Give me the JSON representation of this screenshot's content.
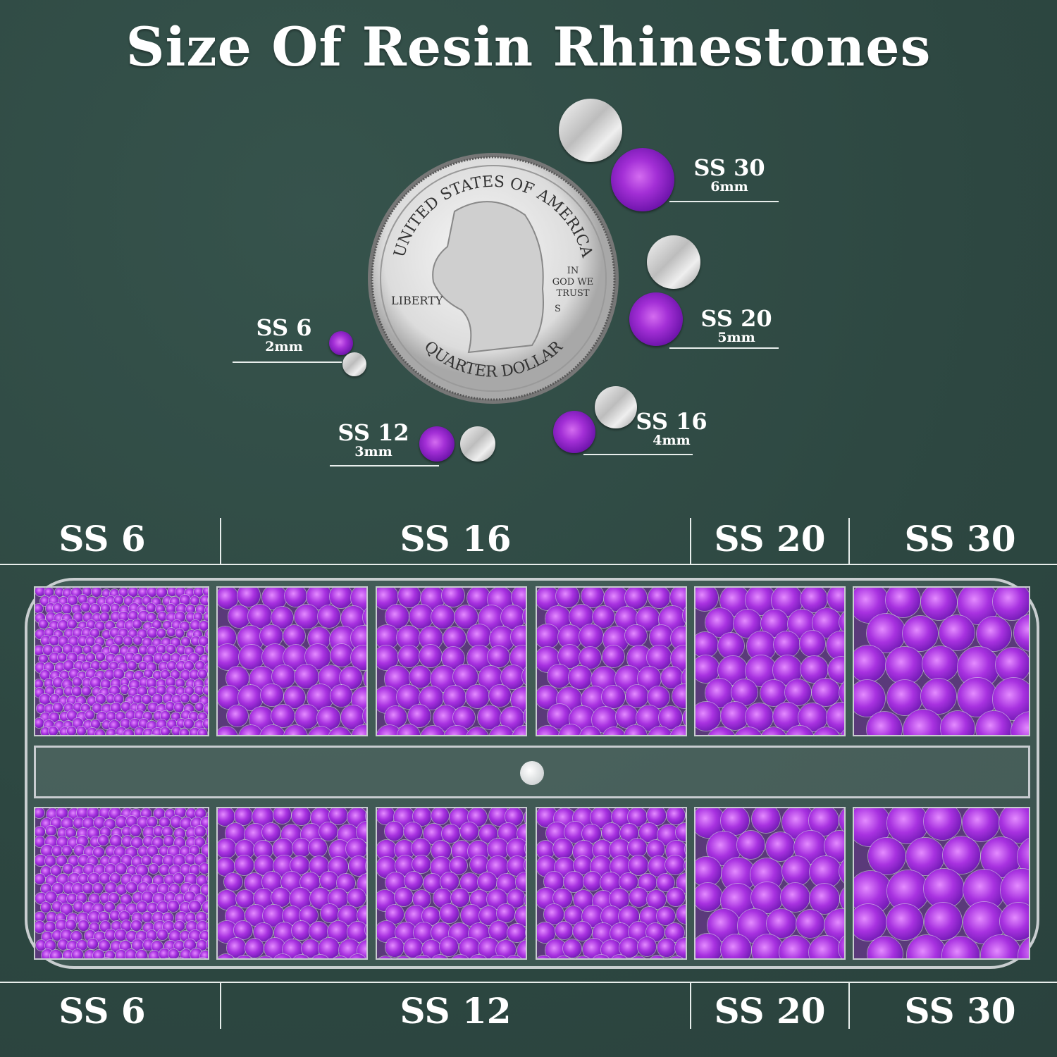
{
  "title": "Size Of Resin Rhinestones",
  "coin": {
    "top_text": "UNITED STATES OF AMERICA",
    "liberty": "LIBERTY",
    "motto": [
      "IN",
      "GOD WE",
      "TRUST"
    ],
    "mint": "S",
    "bottom_text": "QUARTER DOLLAR"
  },
  "size_callouts": [
    {
      "size": "SS 30",
      "mm": "6mm"
    },
    {
      "size": "SS 20",
      "mm": "5mm"
    },
    {
      "size": "SS 16",
      "mm": "4mm"
    },
    {
      "size": "SS 12",
      "mm": "3mm"
    },
    {
      "size": "SS 6",
      "mm": "2mm"
    }
  ],
  "top_row_labels": [
    "SS 6",
    "SS 16",
    "SS 20",
    "SS 30"
  ],
  "bottom_row_labels": [
    "SS 6",
    "SS 12",
    "SS 20",
    "SS 30"
  ],
  "colors": {
    "background": "#2f4a44",
    "stone": "#a32fd6",
    "text": "#ffffff"
  }
}
